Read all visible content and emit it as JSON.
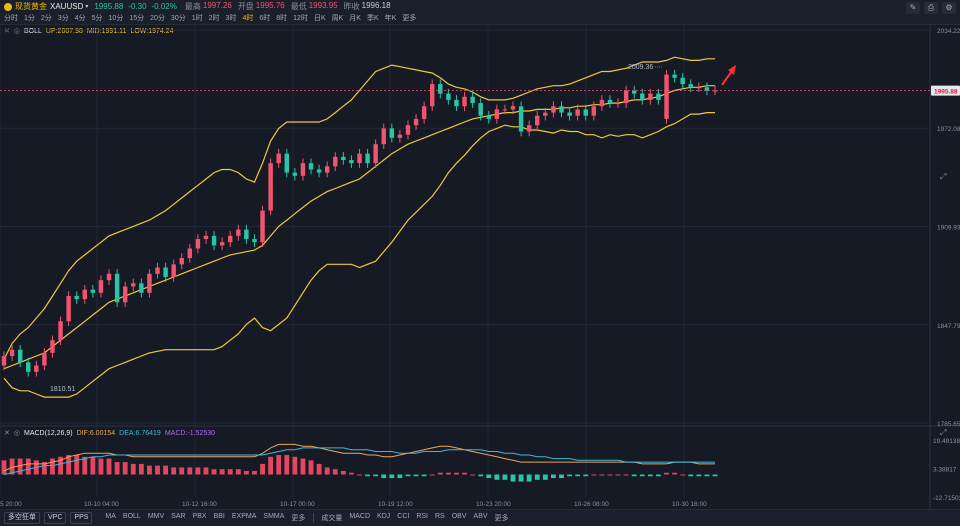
{
  "header": {
    "title": "现货黄金",
    "symbol": "XAUUSD",
    "price": "1995.88",
    "change": "-0.30",
    "change_pct": "-0.02%",
    "stats": [
      {
        "label": "最高",
        "value": "1997.26",
        "color": "#f0556f"
      },
      {
        "label": "开盘",
        "value": "1995.76",
        "color": "#f0556f"
      },
      {
        "label": "最低",
        "value": "1993.95",
        "color": "#f0556f"
      },
      {
        "label": "昨收",
        "value": "1996.18",
        "color": "#c9ccd4"
      }
    ],
    "timeframes": [
      "分时",
      "1分",
      "2分",
      "3分",
      "4分",
      "5分",
      "10分",
      "15分",
      "20分",
      "30分",
      "1时",
      "2时",
      "3时",
      "4时",
      "6时",
      "8时",
      "12时",
      "日K",
      "周K",
      "月K",
      "季K",
      "年K",
      "更多"
    ],
    "active_timeframe": "4时"
  },
  "boll": {
    "name": "BOLL",
    "up": "UP:2007.98",
    "mid": "MID:1991.11",
    "low": "LOW:1974.24"
  },
  "macd": {
    "name": "MACD(12,26,9)",
    "dif": "DIF:6.00154",
    "dea": "DEA:6.76419",
    "macd": "MACD:-1.52530"
  },
  "price_axis": [
    "2034.22",
    "1972.08",
    "1909.93",
    "1847.79",
    "1785.65"
  ],
  "current_price_label": "1995.88",
  "macd_axis": [
    "19.49138",
    "3.38817",
    "-12.71503"
  ],
  "time_axis": [
    "5 20:00",
    "10-10 04:00",
    "10-12 16:00",
    "10-17 00:00",
    "10-19 12:00",
    "10-23 20:00",
    "10-26 08:00",
    "10-30 16:00"
  ],
  "annotations": {
    "high": "2009.36",
    "low": "1810.51"
  },
  "bottom": {
    "buttons": [
      "多空狂单",
      "VPC",
      "PPS"
    ],
    "main_indicators": [
      "MA",
      "BOLL",
      "MMV",
      "SAR",
      "PBX",
      "BBI",
      "EXPMA",
      "SMMA",
      "更多"
    ],
    "sub_indicators": [
      "成交量",
      "MACD",
      "KDJ",
      "CCI",
      "RSI",
      "RS",
      "OBV",
      "ABV",
      "更多"
    ]
  },
  "colors": {
    "up": "#f0556f",
    "down": "#26c6a6",
    "boll": "#f0c83c",
    "dif": "#e8a65c",
    "dea": "#3fb8d8"
  },
  "chart_data": {
    "type": "candlestick",
    "close": [
      1828,
      1832,
      1824,
      1818,
      1822,
      1830,
      1838,
      1850,
      1866,
      1864,
      1870,
      1868,
      1876,
      1880,
      1862,
      1872,
      1874,
      1868,
      1880,
      1884,
      1878,
      1886,
      1890,
      1896,
      1902,
      1904,
      1898,
      1900,
      1904,
      1908,
      1902,
      1900,
      1920,
      1950,
      1956,
      1944,
      1942,
      1950,
      1946,
      1944,
      1948,
      1954,
      1952,
      1950,
      1956,
      1950,
      1962,
      1972,
      1966,
      1968,
      1974,
      1978,
      1986,
      2000,
      1994,
      1990,
      1986,
      1992,
      1988,
      1980,
      1978,
      1984,
      1984,
      1986,
      1970,
      1974,
      1980,
      1982,
      1986,
      1982,
      1980,
      1984,
      1980,
      1986,
      1990,
      1988,
      1988,
      1996,
      1994,
      1990,
      1994,
      1990,
      2006,
      2004,
      2000,
      1998,
      1998,
      1996,
      1996
    ],
    "open": [
      1822,
      1828,
      1832,
      1824,
      1818,
      1822,
      1830,
      1838,
      1850,
      1866,
      1864,
      1870,
      1868,
      1876,
      1880,
      1862,
      1872,
      1874,
      1868,
      1880,
      1884,
      1878,
      1886,
      1890,
      1896,
      1902,
      1904,
      1898,
      1900,
      1904,
      1908,
      1902,
      1900,
      1920,
      1950,
      1956,
      1944,
      1942,
      1950,
      1946,
      1944,
      1948,
      1954,
      1952,
      1950,
      1956,
      1950,
      1962,
      1972,
      1966,
      1968,
      1974,
      1978,
      1986,
      2000,
      1994,
      1990,
      1986,
      1992,
      1988,
      1980,
      1978,
      1984,
      1984,
      1986,
      1970,
      1974,
      1980,
      1982,
      1986,
      1982,
      1980,
      1984,
      1980,
      1986,
      1990,
      1988,
      1988,
      1996,
      1994,
      1990,
      1994,
      1978,
      2006,
      2004,
      2000,
      1998,
      1998,
      1996
    ],
    "boll_up": [
      1826,
      1836,
      1842,
      1846,
      1852,
      1858,
      1866,
      1874,
      1882,
      1888,
      1892,
      1896,
      1900,
      1904,
      1906,
      1908,
      1910,
      1912,
      1914,
      1917,
      1920,
      1924,
      1928,
      1932,
      1936,
      1940,
      1944,
      1946,
      1946,
      1944,
      1940,
      1938,
      1950,
      1964,
      1972,
      1976,
      1976,
      1976,
      1976,
      1976,
      1978,
      1982,
      1986,
      1990,
      1996,
      2002,
      2008,
      2010,
      2012,
      2011,
      2010,
      2009,
      2008,
      2007,
      2004,
      2000,
      1998,
      1997,
      1995,
      1992,
      1990,
      1990,
      1990,
      1991,
      1993,
      1995,
      1997,
      1998,
      1999,
      1999,
      2000,
      2002,
      2004,
      2006,
      2008,
      2008,
      2009,
      2010,
      2012,
      2014,
      2014,
      2014,
      2015,
      2017,
      2016,
      2015,
      2015,
      2016,
      2016
    ],
    "boll_mid": [
      1820,
      1822,
      1824,
      1826,
      1828,
      1830,
      1834,
      1838,
      1842,
      1846,
      1850,
      1854,
      1858,
      1862,
      1864,
      1866,
      1868,
      1870,
      1872,
      1874,
      1876,
      1878,
      1880,
      1882,
      1884,
      1886,
      1888,
      1890,
      1892,
      1893,
      1894,
      1895,
      1898,
      1904,
      1910,
      1914,
      1918,
      1922,
      1926,
      1929,
      1932,
      1934,
      1936,
      1938,
      1940,
      1944,
      1948,
      1952,
      1956,
      1959,
      1962,
      1964,
      1966,
      1968,
      1970,
      1972,
      1974,
      1976,
      1978,
      1979,
      1980,
      1981,
      1982,
      1982,
      1983,
      1983,
      1984,
      1984,
      1984,
      1985,
      1985,
      1986,
      1986,
      1987,
      1987,
      1988,
      1988,
      1989,
      1990,
      1990,
      1991,
      1992,
      1994,
      1996,
      1997,
      1998,
      1998,
      1999,
      1999
    ],
    "boll_low": [
      1814,
      1808,
      1806,
      1806,
      1804,
      1802,
      1802,
      1802,
      1802,
      1804,
      1808,
      1812,
      1816,
      1820,
      1822,
      1824,
      1826,
      1828,
      1830,
      1831,
      1832,
      1832,
      1832,
      1832,
      1832,
      1832,
      1832,
      1834,
      1838,
      1842,
      1848,
      1852,
      1846,
      1844,
      1848,
      1852,
      1860,
      1868,
      1876,
      1882,
      1886,
      1886,
      1886,
      1886,
      1884,
      1886,
      1888,
      1894,
      1900,
      1907,
      1914,
      1919,
      1924,
      1929,
      1936,
      1944,
      1950,
      1955,
      1961,
      1966,
      1970,
      1972,
      1974,
      1973,
      1973,
      1971,
      1971,
      1970,
      1969,
      1971,
      1970,
      1970,
      1968,
      1968,
      1966,
      1968,
      1967,
      1968,
      1968,
      1966,
      1968,
      1970,
      1973,
      1975,
      1978,
      1981,
      1981,
      1982,
      1982
    ],
    "macd_hist": [
      8,
      9,
      9,
      9,
      8,
      7,
      9,
      10,
      11,
      11,
      10,
      10,
      9,
      9,
      7,
      7,
      6,
      6,
      5,
      5,
      5,
      4,
      4,
      4,
      4,
      4,
      3,
      3,
      3,
      3,
      2,
      2,
      6,
      10,
      11,
      11,
      10,
      9,
      8,
      6,
      4,
      3,
      2,
      1,
      0,
      -1,
      -1,
      -2,
      -2,
      -2,
      -1,
      -1,
      -1,
      0,
      1,
      1,
      1,
      1,
      0,
      -1,
      -2,
      -3,
      -3,
      -4,
      -4,
      -4,
      -3,
      -3,
      -2,
      -2,
      -1,
      -1,
      -1,
      0,
      0,
      0,
      0,
      0,
      -1,
      -1,
      -1,
      -1,
      1,
      1,
      0,
      -1,
      -1,
      -1,
      -1
    ],
    "dif": [
      2,
      4,
      5,
      6,
      6,
      6,
      7,
      8,
      10,
      11,
      12,
      12,
      12,
      12,
      11,
      11,
      10,
      10,
      10,
      10,
      10,
      10,
      10,
      10,
      10,
      10,
      10,
      10,
      10,
      10,
      10,
      10,
      12,
      15,
      17,
      17,
      17,
      16,
      16,
      15,
      14,
      13,
      12,
      12,
      12,
      11,
      11,
      10,
      10,
      11,
      12,
      13,
      14,
      15,
      16,
      16,
      15,
      14,
      13,
      12,
      11,
      10,
      9,
      8,
      7,
      7,
      7,
      7,
      7,
      7,
      7,
      7,
      7,
      7,
      7,
      7,
      7,
      7,
      7,
      6,
      6,
      6,
      6,
      7,
      7,
      7,
      6,
      6,
      6
    ],
    "dea": [
      0,
      1,
      2,
      3,
      4,
      5,
      5,
      6,
      7,
      8,
      9,
      10,
      10,
      11,
      11,
      11,
      11,
      11,
      11,
      11,
      11,
      11,
      11,
      11,
      11,
      11,
      11,
      11,
      11,
      11,
      11,
      11,
      11,
      12,
      13,
      14,
      14,
      15,
      15,
      15,
      15,
      15,
      15,
      14,
      14,
      14,
      13,
      13,
      13,
      12,
      12,
      12,
      13,
      13,
      13,
      14,
      14,
      14,
      14,
      14,
      13,
      13,
      12,
      12,
      11,
      11,
      10,
      10,
      9,
      9,
      9,
      8,
      8,
      8,
      8,
      8,
      8,
      7,
      7,
      7,
      7,
      7,
      7,
      7,
      7,
      7,
      7,
      7,
      7
    ],
    "ylim": [
      1785.65,
      2034.22
    ],
    "macd_ylim": [
      -12.71503,
      19.49138
    ],
    "annotations": [
      {
        "label": "2009.36"
      },
      {
        "label": "1810.51"
      }
    ],
    "current_price": 1995.88
  }
}
